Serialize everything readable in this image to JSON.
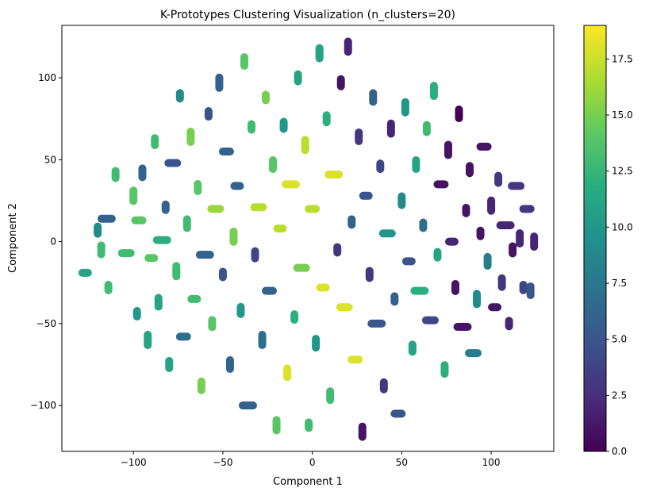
{
  "chart_data": {
    "type": "scatter",
    "title": "K-Prototypes Clustering Visualization (n_clusters=20)",
    "xlabel": "Component 1",
    "ylabel": "Component 2",
    "xlim": [
      -140,
      135
    ],
    "ylim": [
      -128,
      132
    ],
    "xticks": [
      -100,
      -50,
      0,
      50,
      100
    ],
    "yticks": [
      -100,
      -50,
      0,
      50,
      100
    ],
    "xtick_labels": [
      "−100",
      "−50",
      "0",
      "50",
      "100"
    ],
    "ytick_labels": [
      "−100",
      "−50",
      "0",
      "50",
      "100"
    ],
    "grid": false,
    "colormap": "viridis",
    "colorbar": {
      "min": 0,
      "max": 19,
      "ticks": [
        0.0,
        2.5,
        5.0,
        7.5,
        10.0,
        12.5,
        15.0,
        17.5
      ],
      "tick_labels": [
        "0.0",
        "2.5",
        "5.0",
        "7.5",
        "10.0",
        "12.5",
        "15.0",
        "17.5"
      ]
    },
    "points": [
      {
        "x": -127,
        "y": -19,
        "c": 11
      },
      {
        "x": -120,
        "y": 7,
        "c": 9
      },
      {
        "x": -118,
        "y": -5,
        "c": 13
      },
      {
        "x": -115,
        "y": 14,
        "c": 6
      },
      {
        "x": -114,
        "y": -28,
        "c": 13
      },
      {
        "x": -110,
        "y": 41,
        "c": 13
      },
      {
        "x": -104,
        "y": -7,
        "c": 13
      },
      {
        "x": -100,
        "y": 28,
        "c": 14
      },
      {
        "x": -98,
        "y": -44,
        "c": 10
      },
      {
        "x": -97,
        "y": 13,
        "c": 14
      },
      {
        "x": -95,
        "y": 42,
        "c": 6
      },
      {
        "x": -92,
        "y": -60,
        "c": 11
      },
      {
        "x": -90,
        "y": -10,
        "c": 14
      },
      {
        "x": -88,
        "y": 61,
        "c": 13
      },
      {
        "x": -86,
        "y": -37,
        "c": 11
      },
      {
        "x": -84,
        "y": 1,
        "c": 12
      },
      {
        "x": -82,
        "y": 21,
        "c": 6
      },
      {
        "x": -80,
        "y": -75,
        "c": 11
      },
      {
        "x": -78,
        "y": 48,
        "c": 5
      },
      {
        "x": -76,
        "y": -18,
        "c": 13
      },
      {
        "x": -74,
        "y": 89,
        "c": 9
      },
      {
        "x": -72,
        "y": -58,
        "c": 7
      },
      {
        "x": -70,
        "y": 11,
        "c": 13
      },
      {
        "x": -68,
        "y": 64,
        "c": 15
      },
      {
        "x": -66,
        "y": -35,
        "c": 13
      },
      {
        "x": -64,
        "y": 33,
        "c": 14
      },
      {
        "x": -62,
        "y": -88,
        "c": 15
      },
      {
        "x": -60,
        "y": -8,
        "c": 6
      },
      {
        "x": -58,
        "y": 78,
        "c": 5
      },
      {
        "x": -56,
        "y": -50,
        "c": 14
      },
      {
        "x": -54,
        "y": 20,
        "c": 16
      },
      {
        "x": -52,
        "y": 97,
        "c": 6
      },
      {
        "x": -50,
        "y": -20,
        "c": 5
      },
      {
        "x": -48,
        "y": 55,
        "c": 6
      },
      {
        "x": -46,
        "y": -75,
        "c": 6
      },
      {
        "x": -44,
        "y": 3,
        "c": 15
      },
      {
        "x": -42,
        "y": 34,
        "c": 6
      },
      {
        "x": -40,
        "y": -42,
        "c": 10
      },
      {
        "x": -38,
        "y": 110,
        "c": 14
      },
      {
        "x": -36,
        "y": -100,
        "c": 6
      },
      {
        "x": -34,
        "y": 70,
        "c": 13
      },
      {
        "x": -32,
        "y": -8,
        "c": 4
      },
      {
        "x": -30,
        "y": 21,
        "c": 17
      },
      {
        "x": -28,
        "y": -60,
        "c": 7
      },
      {
        "x": -26,
        "y": 88,
        "c": 15
      },
      {
        "x": -24,
        "y": -30,
        "c": 6
      },
      {
        "x": -22,
        "y": 47,
        "c": 14
      },
      {
        "x": -20,
        "y": -112,
        "c": 14
      },
      {
        "x": -18,
        "y": 8,
        "c": 17
      },
      {
        "x": -16,
        "y": 71,
        "c": 10
      },
      {
        "x": -14,
        "y": -80,
        "c": 18
      },
      {
        "x": -12,
        "y": 35,
        "c": 18
      },
      {
        "x": -10,
        "y": -46,
        "c": 12
      },
      {
        "x": -8,
        "y": 100,
        "c": 11
      },
      {
        "x": -6,
        "y": -16,
        "c": 15
      },
      {
        "x": -4,
        "y": 59,
        "c": 17
      },
      {
        "x": -2,
        "y": -112,
        "c": 13
      },
      {
        "x": 0,
        "y": 20,
        "c": 17
      },
      {
        "x": 2,
        "y": -62,
        "c": 10
      },
      {
        "x": 4,
        "y": 115,
        "c": 11
      },
      {
        "x": 6,
        "y": -28,
        "c": 18
      },
      {
        "x": 8,
        "y": 75,
        "c": 12
      },
      {
        "x": 10,
        "y": -94,
        "c": 13
      },
      {
        "x": 12,
        "y": 41,
        "c": 18
      },
      {
        "x": 14,
        "y": -5,
        "c": 3
      },
      {
        "x": 16,
        "y": 97,
        "c": 1
      },
      {
        "x": 18,
        "y": -40,
        "c": 18
      },
      {
        "x": 20,
        "y": 119,
        "c": 2
      },
      {
        "x": 22,
        "y": 12,
        "c": 6
      },
      {
        "x": 24,
        "y": -72,
        "c": 18
      },
      {
        "x": 26,
        "y": 64,
        "c": 3
      },
      {
        "x": 28,
        "y": -116,
        "c": 1
      },
      {
        "x": 30,
        "y": 28,
        "c": 5
      },
      {
        "x": 32,
        "y": -20,
        "c": 3
      },
      {
        "x": 34,
        "y": 88,
        "c": 6
      },
      {
        "x": 36,
        "y": -50,
        "c": 5
      },
      {
        "x": 38,
        "y": 46,
        "c": 4
      },
      {
        "x": 40,
        "y": -88,
        "c": 3
      },
      {
        "x": 42,
        "y": 5,
        "c": 10
      },
      {
        "x": 44,
        "y": 69,
        "c": 2
      },
      {
        "x": 46,
        "y": -35,
        "c": 6
      },
      {
        "x": 48,
        "y": -105,
        "c": 5
      },
      {
        "x": 50,
        "y": 25,
        "c": 9
      },
      {
        "x": 52,
        "y": 82,
        "c": 10
      },
      {
        "x": 54,
        "y": -12,
        "c": 5
      },
      {
        "x": 56,
        "y": -65,
        "c": 11
      },
      {
        "x": 58,
        "y": 47,
        "c": 11
      },
      {
        "x": 60,
        "y": -30,
        "c": 12
      },
      {
        "x": 62,
        "y": 10,
        "c": 7
      },
      {
        "x": 64,
        "y": 69,
        "c": 13
      },
      {
        "x": 66,
        "y": -48,
        "c": 4
      },
      {
        "x": 68,
        "y": 92,
        "c": 12
      },
      {
        "x": 70,
        "y": -8,
        "c": 11
      },
      {
        "x": 72,
        "y": 35,
        "c": 1
      },
      {
        "x": 74,
        "y": -78,
        "c": 12
      },
      {
        "x": 76,
        "y": 56,
        "c": 1
      },
      {
        "x": 78,
        "y": 0,
        "c": 2
      },
      {
        "x": 80,
        "y": -28,
        "c": 1
      },
      {
        "x": 82,
        "y": 78,
        "c": 0
      },
      {
        "x": 84,
        "y": -52,
        "c": 1
      },
      {
        "x": 86,
        "y": 19,
        "c": 1
      },
      {
        "x": 88,
        "y": 44,
        "c": 1
      },
      {
        "x": 90,
        "y": -68,
        "c": 8
      },
      {
        "x": 92,
        "y": -35,
        "c": 9
      },
      {
        "x": 94,
        "y": 5,
        "c": 1
      },
      {
        "x": 96,
        "y": 58,
        "c": 1
      },
      {
        "x": 98,
        "y": -12,
        "c": 8
      },
      {
        "x": 100,
        "y": 22,
        "c": 2
      },
      {
        "x": 102,
        "y": -40,
        "c": 1
      },
      {
        "x": 104,
        "y": 38,
        "c": 3
      },
      {
        "x": 106,
        "y": -25,
        "c": 3
      },
      {
        "x": 108,
        "y": 10,
        "c": 2
      },
      {
        "x": 110,
        "y": -50,
        "c": 2
      },
      {
        "x": 112,
        "y": -5,
        "c": 1
      },
      {
        "x": 114,
        "y": 34,
        "c": 3
      },
      {
        "x": 116,
        "y": 2,
        "c": 2
      },
      {
        "x": 118,
        "y": -28,
        "c": 4
      },
      {
        "x": 120,
        "y": 20,
        "c": 3
      },
      {
        "x": 122,
        "y": -30,
        "c": 5
      },
      {
        "x": 124,
        "y": 0,
        "c": 2
      }
    ]
  }
}
